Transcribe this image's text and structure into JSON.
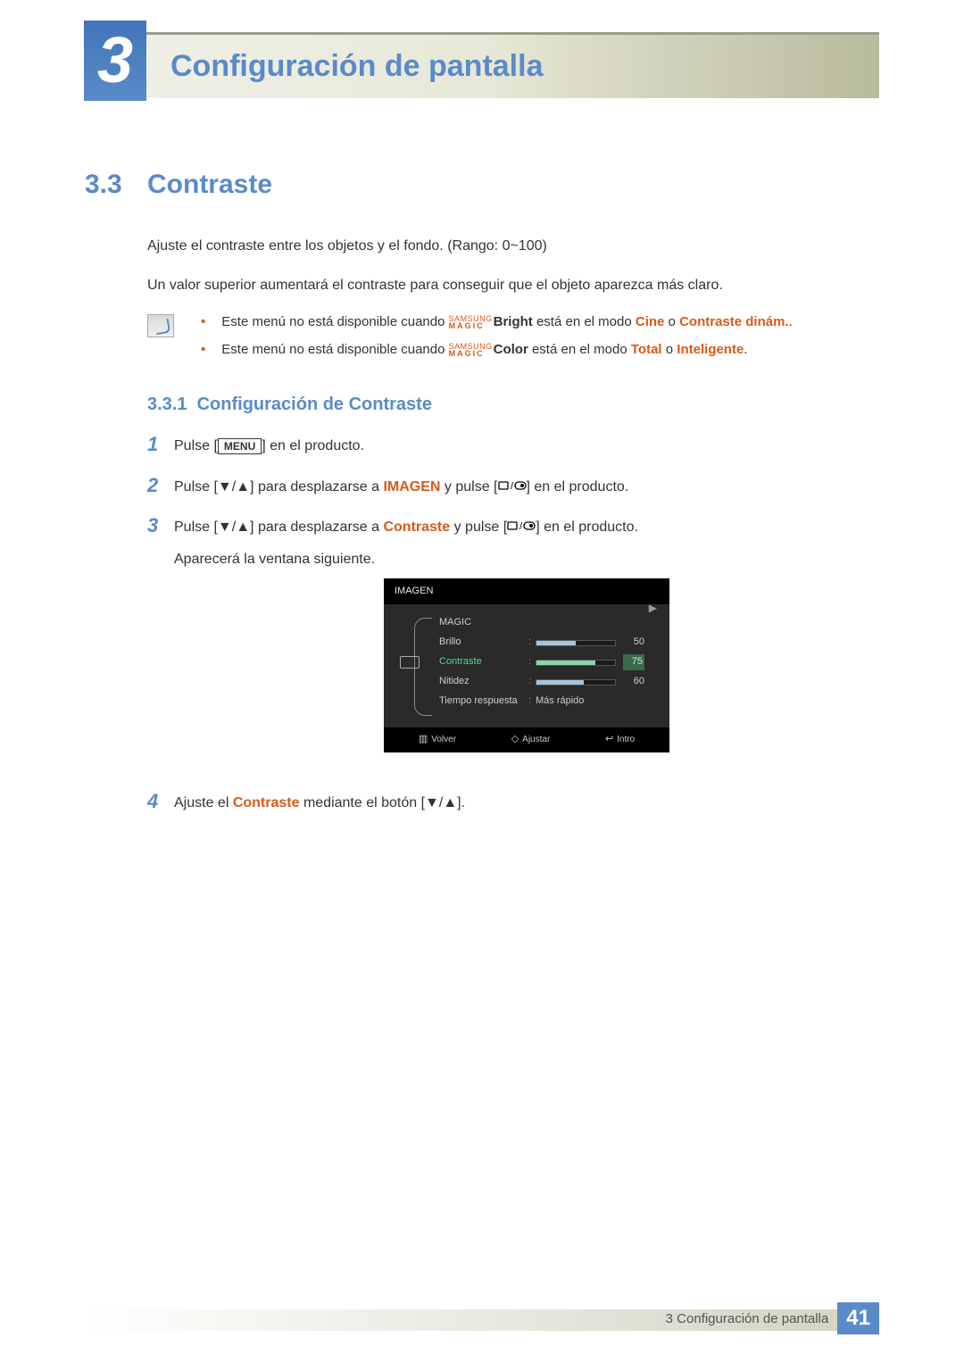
{
  "header": {
    "chapter_number": "3",
    "chapter_title": "Configuración de pantalla"
  },
  "section": {
    "number": "3.3",
    "title": "Contraste"
  },
  "intro": {
    "p1": "Ajuste el contraste entre los objetos y el fondo. (Rango: 0~100)",
    "p2": "Un valor superior aumentará el contraste para conseguir que el objeto aparezca más claro."
  },
  "magic": {
    "line1": "SAMSUNG",
    "line2": "MAGIC"
  },
  "notes": [
    {
      "pre": "Este menú no está disponible cuando ",
      "suffix": "Bright",
      "mid": " está en el modo ",
      "m1": "Cine",
      "or": " o ",
      "m2": "Contraste dinám.",
      "end": "."
    },
    {
      "pre": "Este menú no está disponible cuando ",
      "suffix": "Color",
      "mid": " está en el modo ",
      "m1": "Total",
      "or": " o ",
      "m2": "Inteligente",
      "end": "."
    }
  ],
  "subsection": {
    "number": "3.3.1",
    "title": "Configuración de Contraste"
  },
  "steps": {
    "s1": {
      "a": "Pulse [",
      "menu": "MENU",
      "b": "] en el producto."
    },
    "s2": {
      "a": "Pulse [",
      "b": "] para desplazarse a ",
      "target": "IMAGEN",
      "c": " y pulse [",
      "d": "] en el producto."
    },
    "s3": {
      "a": "Pulse [",
      "b": "] para desplazarse a ",
      "target": "Contraste",
      "c": " y pulse [",
      "d": "] en el producto.",
      "e": "Aparecerá la ventana siguiente."
    },
    "s4": {
      "a": "Ajuste el ",
      "target": "Contraste",
      "b": " mediante el botón [",
      "c": "]."
    }
  },
  "osd": {
    "title": "IMAGEN",
    "rows": [
      {
        "label": "MAGIC",
        "type": "arrow"
      },
      {
        "label": "Brillo",
        "type": "slider",
        "value": 50,
        "max": 100,
        "selected": false
      },
      {
        "label": "Contraste",
        "type": "slider",
        "value": 75,
        "max": 100,
        "selected": true
      },
      {
        "label": "Nitidez",
        "type": "slider",
        "value": 60,
        "max": 100,
        "selected": false
      },
      {
        "label": "Tiempo respuesta",
        "type": "text",
        "text": "Más rápido"
      }
    ],
    "footer": {
      "back": "Volver",
      "adjust": "Ajustar",
      "enter": "Intro"
    },
    "colors": {
      "bg": "#2a2a2a",
      "title_bg": "#000000",
      "text": "#cfcfcf",
      "selected_text": "#5cd488",
      "bar_fill": "#a8c4dc",
      "bar_fill_selected": "#88d8a8"
    }
  },
  "footer": {
    "text": "3 Configuración de pantalla",
    "page": "41"
  },
  "colors": {
    "accent_blue": "#5a8bc8",
    "accent_orange": "#d85a1a",
    "band_border": "#999e89"
  }
}
